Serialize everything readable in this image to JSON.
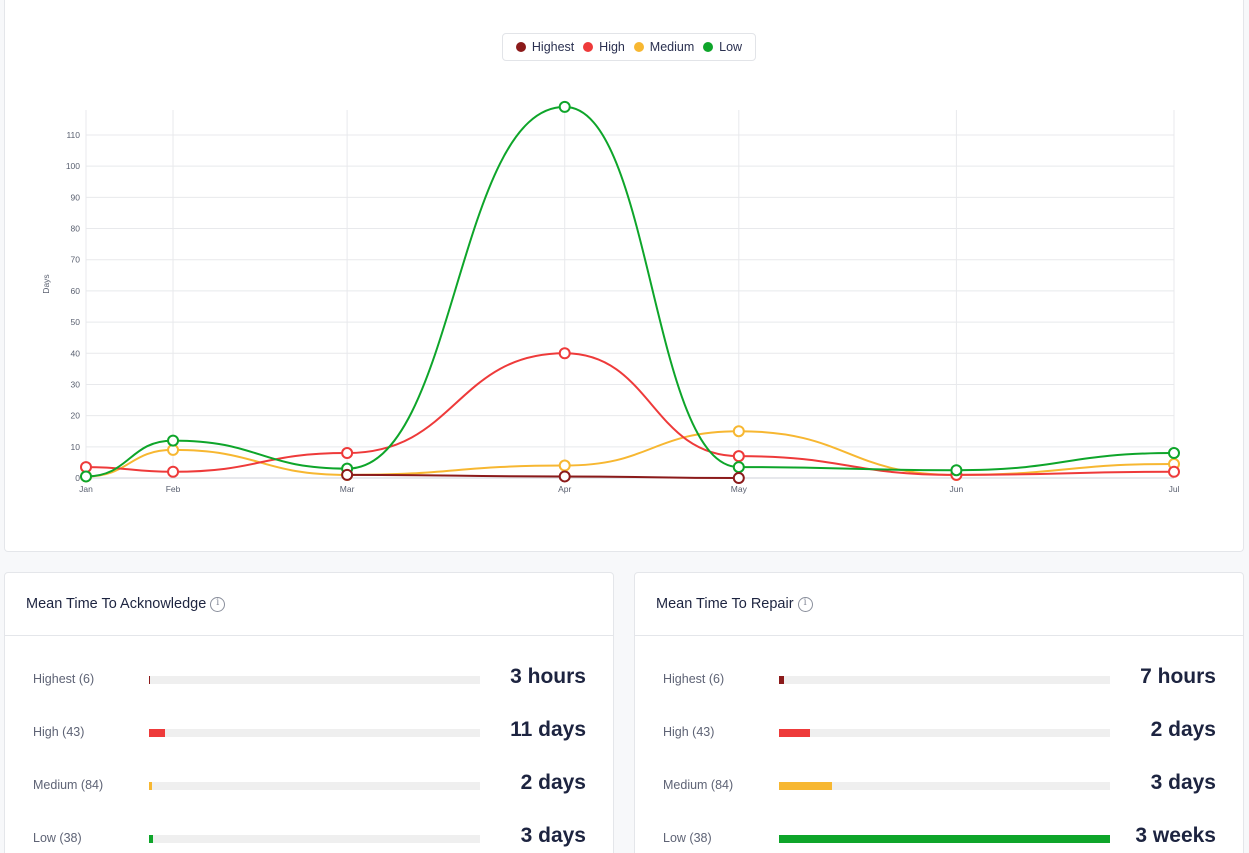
{
  "legend": [
    {
      "name": "Highest",
      "color": "#8b1a1a"
    },
    {
      "name": "High",
      "color": "#ee3a3a"
    },
    {
      "name": "Medium",
      "color": "#f7b731"
    },
    {
      "name": "Low",
      "color": "#0ea52a"
    }
  ],
  "chart_data": {
    "type": "line",
    "ylabel": "Days",
    "xlabel": "",
    "x": [
      "Jan",
      "Feb",
      "Mar",
      "Apr",
      "May",
      "Jun",
      "Jul"
    ],
    "x_positions_months": [
      0,
      1,
      3,
      5.5,
      7.5,
      10,
      12.5
    ],
    "ylim": [
      0,
      118
    ],
    "yticks": [
      0,
      10,
      20,
      30,
      40,
      50,
      60,
      70,
      80,
      90,
      100,
      110
    ],
    "grid": true,
    "legend_position": "top-center",
    "series": [
      {
        "name": "Highest",
        "color": "#8b1a1a",
        "values": [
          null,
          null,
          1,
          0.5,
          0,
          null,
          null
        ]
      },
      {
        "name": "High",
        "color": "#ee3a3a",
        "values": [
          3.5,
          2,
          8,
          40,
          7,
          1,
          2
        ]
      },
      {
        "name": "Medium",
        "color": "#f7b731",
        "values": [
          0.5,
          9,
          1,
          4,
          15,
          1,
          4.5
        ]
      },
      {
        "name": "Low",
        "color": "#0ea52a",
        "values": [
          0.5,
          12,
          3,
          119,
          3.5,
          2.5,
          8
        ]
      }
    ]
  },
  "mtta": {
    "title": "Mean Time To Acknowledge",
    "rows": [
      {
        "label": "Highest (6)",
        "value": "3 hours",
        "fraction": 0.004,
        "color": "#8b1a1a"
      },
      {
        "label": "High (43)",
        "value": "11 days",
        "fraction": 0.048,
        "color": "#ee3a3a"
      },
      {
        "label": "Medium (84)",
        "value": "2 days",
        "fraction": 0.009,
        "color": "#f7b731"
      },
      {
        "label": "Low (38)",
        "value": "3 days",
        "fraction": 0.013,
        "color": "#0ea52a"
      }
    ]
  },
  "mttr": {
    "title": "Mean Time To Repair",
    "rows": [
      {
        "label": "Highest (6)",
        "value": "7 hours",
        "fraction": 0.014,
        "color": "#8b1a1a"
      },
      {
        "label": "High (43)",
        "value": "2 days",
        "fraction": 0.095,
        "color": "#ee3a3a"
      },
      {
        "label": "Medium (84)",
        "value": "3 days",
        "fraction": 0.16,
        "color": "#f7b731"
      },
      {
        "label": "Low (38)",
        "value": "3 weeks",
        "fraction": 1.0,
        "color": "#0ea52a"
      }
    ]
  }
}
